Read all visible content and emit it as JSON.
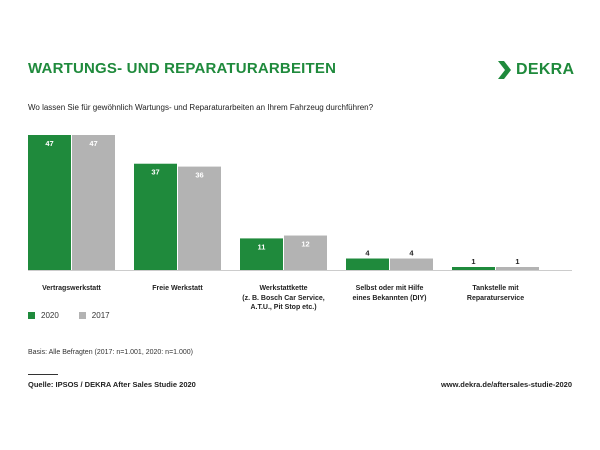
{
  "header": {
    "title": "WARTUNGS- UND REPARATURARBEITEN",
    "logo_text": "DEKRA",
    "question": "Wo lassen Sie für gewöhnlich Wartungs- und Reparaturarbeiten an Ihrem Fahrzeug durchführen?"
  },
  "colors": {
    "series_2020": "#1f8a3c",
    "series_2017": "#b3b3b3",
    "brand": "#1f8a3c"
  },
  "chart_data": {
    "type": "bar",
    "categories": [
      "Vertragswerkstatt",
      "Freie Werkstatt",
      "Werkstattkette\n(z. B. Bosch Car Service,\nA.T.U., Pit Stop etc.)",
      "Selbst oder mit Hilfe\neines Bekannten (DIY)",
      "Tankstelle mit\nReparaturservice"
    ],
    "series": [
      {
        "name": "2020",
        "values": [
          47,
          37,
          11,
          4,
          1
        ]
      },
      {
        "name": "2017",
        "values": [
          47,
          36,
          12,
          4,
          1
        ]
      }
    ],
    "ylim": [
      0,
      47
    ],
    "legend": "bottom-left",
    "grid": false
  },
  "legend": {
    "item_2020": "2020",
    "item_2017": "2017"
  },
  "footer": {
    "basis": "Basis: Alle Befragten (2017: n=1.001, 2020: n=1.000)",
    "source": "Quelle: IPSOS / DEKRA After Sales Studie 2020",
    "url": "www.dekra.de/aftersales-studie-2020"
  }
}
